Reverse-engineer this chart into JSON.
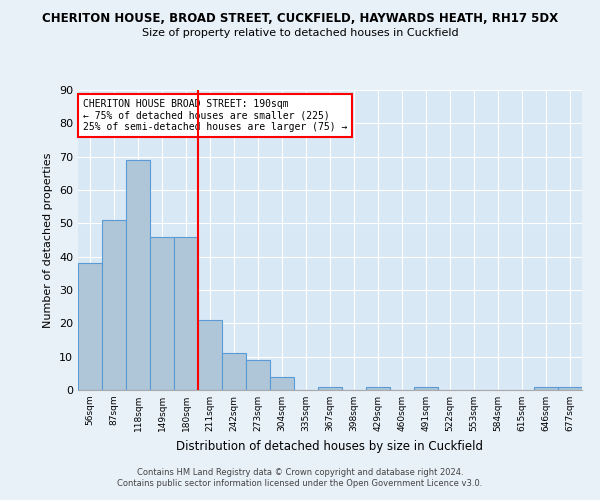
{
  "title1": "CHERITON HOUSE, BROAD STREET, CUCKFIELD, HAYWARDS HEATH, RH17 5DX",
  "title2": "Size of property relative to detached houses in Cuckfield",
  "xlabel": "Distribution of detached houses by size in Cuckfield",
  "ylabel": "Number of detached properties",
  "categories": [
    "56sqm",
    "87sqm",
    "118sqm",
    "149sqm",
    "180sqm",
    "211sqm",
    "242sqm",
    "273sqm",
    "304sqm",
    "335sqm",
    "367sqm",
    "398sqm",
    "429sqm",
    "460sqm",
    "491sqm",
    "522sqm",
    "553sqm",
    "584sqm",
    "615sqm",
    "646sqm",
    "677sqm"
  ],
  "values": [
    38,
    51,
    69,
    46,
    46,
    21,
    11,
    9,
    4,
    0,
    1,
    0,
    1,
    0,
    1,
    0,
    0,
    0,
    0,
    1,
    1
  ],
  "bar_color": "#aec6d8",
  "bar_edge_color": "#5b9bd5",
  "vline_x": 4.5,
  "vline_color": "red",
  "annotation_line1": "CHERITON HOUSE BROAD STREET: 190sqm",
  "annotation_line2": "← 75% of detached houses are smaller (225)",
  "annotation_line3": "25% of semi-detached houses are larger (75) →",
  "ylim": [
    0,
    90
  ],
  "yticks": [
    0,
    10,
    20,
    30,
    40,
    50,
    60,
    70,
    80,
    90
  ],
  "footer1": "Contains HM Land Registry data © Crown copyright and database right 2024.",
  "footer2": "Contains public sector information licensed under the Open Government Licence v3.0.",
  "bg_color": "#e8f0f8",
  "plot_bg_color": "#d8e8f4"
}
